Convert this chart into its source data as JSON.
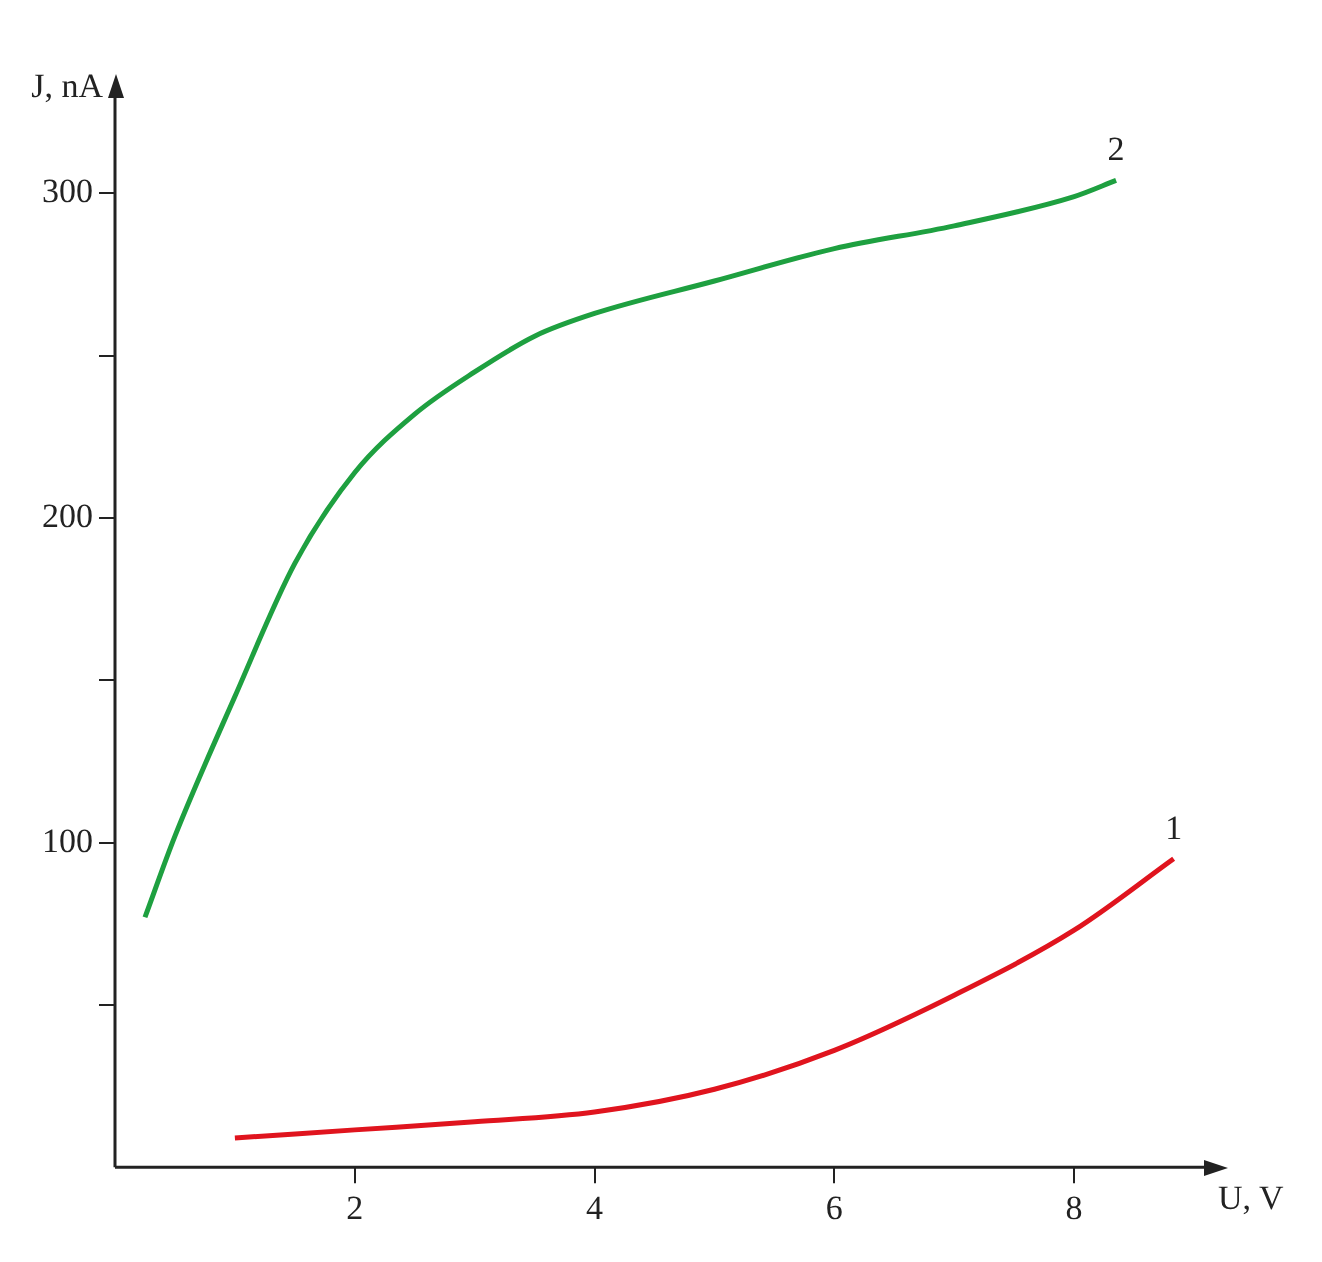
{
  "chart_data": {
    "type": "line",
    "xlabel": "U, V",
    "ylabel": "J, nA",
    "xlim": [
      0,
      9.1
    ],
    "ylim": [
      0,
      330
    ],
    "xticks": [
      2,
      4,
      6,
      8
    ],
    "yticks": [
      {
        "value": 50,
        "label": null
      },
      100,
      {
        "value": 150,
        "label": null
      },
      200,
      {
        "value": 250,
        "label": null
      },
      300
    ],
    "grid": false,
    "legend": false,
    "marker": "none",
    "line_style": "solid",
    "series": [
      {
        "color": "#e0141e",
        "x": [
          1.0,
          2.0,
          3.0,
          4.0,
          5.0,
          6.0,
          7.0,
          8.0,
          8.83
        ],
        "values": [
          9,
          11.5,
          14,
          17,
          24,
          36,
          53,
          73,
          95
        ]
      },
      {
        "color": "#1ea040",
        "x": [
          0.25,
          0.5,
          1.0,
          1.5,
          2.0,
          2.5,
          3.0,
          3.5,
          4.0,
          5.0,
          6.0,
          7.0,
          8.0,
          8.35
        ],
        "values": [
          77,
          102,
          145,
          186,
          214,
          232,
          245,
          256,
          263,
          273,
          283,
          290,
          299,
          304
        ]
      }
    ],
    "annotations": [
      {
        "text": "1",
        "x": 8.83,
        "y": 95
      },
      {
        "text": "2",
        "x": 8.35,
        "y": 304
      }
    ]
  }
}
